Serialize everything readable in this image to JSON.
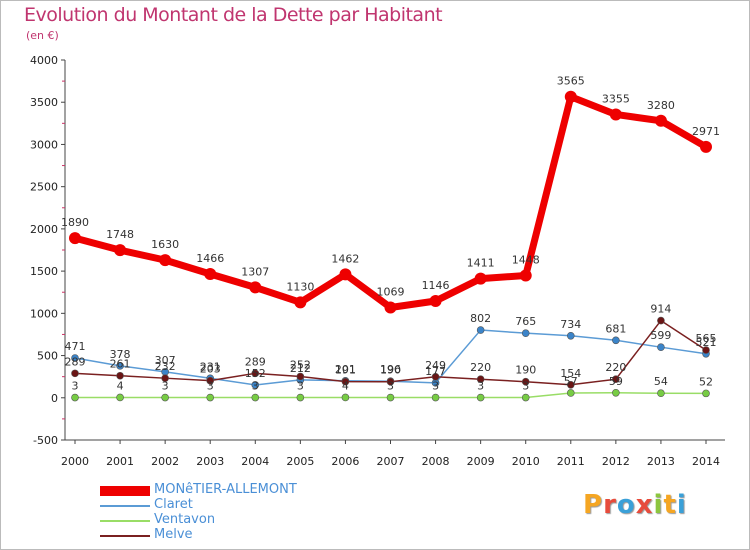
{
  "header": {
    "title": "Evolution du Montant de la Dette par Habitant",
    "subtitle": "(en €)"
  },
  "logo": {
    "letters": [
      "P",
      "r",
      "o",
      "x",
      "i",
      "t",
      "i"
    ],
    "colors": [
      "#f5a623",
      "#e74c3c",
      "#3aa0d8",
      "#e74c3c",
      "#8cc63f",
      "#f5a623",
      "#3aa0d8"
    ]
  },
  "chart_data": {
    "type": "line",
    "x": [
      "2000",
      "2001",
      "2002",
      "2003",
      "2004",
      "2005",
      "2006",
      "2007",
      "2008",
      "2009",
      "2010",
      "2011",
      "2012",
      "2013",
      "2014"
    ],
    "ylim": [
      -500,
      4000
    ],
    "yticks": [
      "-500",
      "0",
      "500",
      "1000",
      "1500",
      "2000",
      "2500",
      "3000",
      "3500",
      "4000"
    ],
    "grid": false,
    "legend_position": "bottom-left",
    "series": [
      {
        "name": "MONêTIER-ALLEMONT",
        "color": "#ee0000",
        "values": [
          1890,
          1748,
          1630,
          1466,
          1307,
          1130,
          1462,
          1069,
          1146,
          1411,
          1448,
          3565,
          3355,
          3280,
          2971
        ],
        "labels": [
          "1890",
          "1748",
          "1630",
          "1466",
          "1307",
          "1130",
          "1462",
          "1069",
          "1146",
          "1411",
          "1448",
          "3565",
          "3355",
          "3280",
          "2971"
        ]
      },
      {
        "name": "Claret",
        "color": "#5b9bd5",
        "values": [
          471,
          378,
          307,
          231,
          152,
          212,
          201,
          196,
          177,
          802,
          765,
          734,
          681,
          599,
          521
        ],
        "labels": [
          "471",
          "378",
          "307",
          "231",
          "152",
          "212",
          "201",
          "196",
          "177",
          "802",
          "765",
          "734",
          "681",
          "599",
          "521"
        ]
      },
      {
        "name": "Ventavon",
        "color": "#99dd66",
        "values": [
          3,
          4,
          3,
          3,
          3,
          3,
          4,
          3,
          3,
          3,
          3,
          57,
          59,
          54,
          52
        ],
        "labels": [
          "3",
          "4",
          "3",
          "3",
          "3",
          "3",
          "4",
          "3",
          "3",
          "3",
          "3",
          "57",
          "59",
          "54",
          "52"
        ]
      },
      {
        "name": "Melve",
        "color": "#7a2020",
        "values": [
          289,
          261,
          232,
          203,
          289,
          252,
          191,
          190,
          249,
          220,
          190,
          154,
          220,
          914,
          565
        ],
        "labels": [
          "289",
          "261",
          "232",
          "203",
          "289",
          "252",
          "191",
          "190",
          "249",
          "220",
          "190",
          "154",
          "220",
          "914",
          "565"
        ]
      }
    ]
  }
}
